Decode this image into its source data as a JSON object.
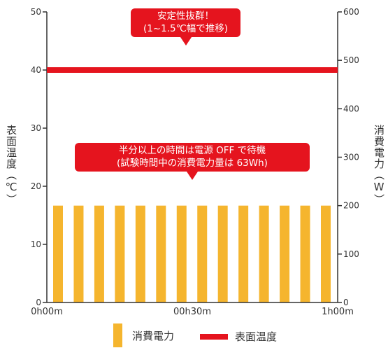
{
  "chart_data": {
    "type": "bar",
    "x_ticks": [
      "0h00m",
      "00h30m",
      "1h00m"
    ],
    "y_left": {
      "label": "表面温度（℃）",
      "ticks": [
        0,
        10,
        20,
        30,
        40,
        50
      ],
      "ylim": [
        0,
        50
      ]
    },
    "y_right": {
      "label": "消費電力（W）",
      "ticks": [
        0,
        100,
        200,
        300,
        400,
        500,
        600
      ],
      "ylim": [
        0,
        600
      ]
    },
    "series": [
      {
        "name": "消費電力",
        "type": "bar",
        "axis": "right",
        "color": "#f5b52e",
        "values": [
          200,
          200,
          200,
          200,
          200,
          200,
          200,
          200,
          200,
          200,
          200,
          200,
          200,
          200
        ]
      },
      {
        "name": "表面温度",
        "type": "line",
        "axis": "left",
        "color": "#e5141e",
        "value": 40
      }
    ],
    "annotations": [
      {
        "lines": [
          "安定性抜群！",
          "(1~1.5℃幅で推移)"
        ]
      },
      {
        "lines": [
          "半分以上の時間は電源 OFF で待機",
          "(試験時間中の消費電力量は 63Wh)"
        ]
      }
    ],
    "grid": false,
    "legend": "bottom"
  }
}
